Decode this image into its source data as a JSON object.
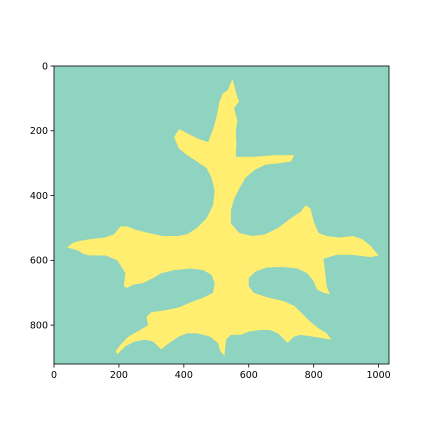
{
  "chart_data": {
    "type": "heatmap",
    "title": "",
    "xlabel": "",
    "ylabel": "",
    "xlim": [
      0,
      1032
    ],
    "ylim": [
      920,
      0
    ],
    "x_ticks": [
      {
        "value": 0,
        "label": "0"
      },
      {
        "value": 200,
        "label": "200"
      },
      {
        "value": 400,
        "label": "400"
      },
      {
        "value": 600,
        "label": "600"
      },
      {
        "value": 800,
        "label": "800"
      },
      {
        "value": 1000,
        "label": "1000"
      }
    ],
    "y_ticks": [
      {
        "value": 0,
        "label": "0"
      },
      {
        "value": 200,
        "label": "200"
      },
      {
        "value": 400,
        "label": "400"
      },
      {
        "value": 600,
        "label": "600"
      },
      {
        "value": 800,
        "label": "800"
      }
    ],
    "colors": {
      "background_value": "#8fd3c1",
      "region_value": "#ffee6f",
      "axis": "#000000"
    },
    "region_outline": [
      [
        550,
        40
      ],
      [
        560,
        80
      ],
      [
        570,
        110
      ],
      [
        555,
        130
      ],
      [
        565,
        170
      ],
      [
        560,
        200
      ],
      [
        562,
        240
      ],
      [
        560,
        280
      ],
      [
        620,
        280
      ],
      [
        680,
        275
      ],
      [
        740,
        275
      ],
      [
        730,
        295
      ],
      [
        695,
        300
      ],
      [
        650,
        305
      ],
      [
        620,
        320
      ],
      [
        590,
        345
      ],
      [
        570,
        380
      ],
      [
        555,
        410
      ],
      [
        545,
        445
      ],
      [
        545,
        485
      ],
      [
        570,
        515
      ],
      [
        610,
        525
      ],
      [
        650,
        520
      ],
      [
        690,
        500
      ],
      [
        730,
        470
      ],
      [
        760,
        450
      ],
      [
        775,
        430
      ],
      [
        790,
        440
      ],
      [
        800,
        480
      ],
      [
        815,
        515
      ],
      [
        840,
        525
      ],
      [
        880,
        530
      ],
      [
        920,
        525
      ],
      [
        950,
        535
      ],
      [
        975,
        555
      ],
      [
        1000,
        585
      ],
      [
        975,
        590
      ],
      [
        920,
        583
      ],
      [
        870,
        583
      ],
      [
        830,
        595
      ],
      [
        835,
        635
      ],
      [
        840,
        680
      ],
      [
        850,
        705
      ],
      [
        830,
        700
      ],
      [
        810,
        690
      ],
      [
        800,
        665
      ],
      [
        780,
        640
      ],
      [
        750,
        625
      ],
      [
        705,
        620
      ],
      [
        655,
        622
      ],
      [
        620,
        635
      ],
      [
        600,
        655
      ],
      [
        600,
        680
      ],
      [
        615,
        700
      ],
      [
        660,
        715
      ],
      [
        705,
        725
      ],
      [
        740,
        740
      ],
      [
        770,
        770
      ],
      [
        790,
        790
      ],
      [
        815,
        810
      ],
      [
        840,
        825
      ],
      [
        855,
        845
      ],
      [
        825,
        840
      ],
      [
        795,
        835
      ],
      [
        760,
        830
      ],
      [
        740,
        835
      ],
      [
        720,
        855
      ],
      [
        705,
        840
      ],
      [
        690,
        825
      ],
      [
        665,
        815
      ],
      [
        635,
        815
      ],
      [
        600,
        820
      ],
      [
        575,
        830
      ],
      [
        545,
        830
      ],
      [
        530,
        845
      ],
      [
        525,
        895
      ],
      [
        512,
        880
      ],
      [
        505,
        855
      ],
      [
        480,
        835
      ],
      [
        440,
        825
      ],
      [
        410,
        825
      ],
      [
        385,
        835
      ],
      [
        355,
        855
      ],
      [
        330,
        875
      ],
      [
        305,
        850
      ],
      [
        280,
        845
      ],
      [
        250,
        850
      ],
      [
        220,
        865
      ],
      [
        195,
        890
      ],
      [
        190,
        880
      ],
      [
        205,
        860
      ],
      [
        230,
        835
      ],
      [
        265,
        815
      ],
      [
        290,
        800
      ],
      [
        285,
        775
      ],
      [
        300,
        760
      ],
      [
        340,
        755
      ],
      [
        385,
        745
      ],
      [
        420,
        730
      ],
      [
        460,
        715
      ],
      [
        490,
        700
      ],
      [
        495,
        670
      ],
      [
        485,
        645
      ],
      [
        460,
        630
      ],
      [
        420,
        625
      ],
      [
        370,
        630
      ],
      [
        330,
        640
      ],
      [
        305,
        655
      ],
      [
        275,
        670
      ],
      [
        245,
        675
      ],
      [
        225,
        685
      ],
      [
        215,
        680
      ],
      [
        220,
        640
      ],
      [
        195,
        600
      ],
      [
        160,
        585
      ],
      [
        110,
        585
      ],
      [
        90,
        580
      ],
      [
        75,
        570
      ],
      [
        40,
        560
      ],
      [
        60,
        545
      ],
      [
        80,
        540
      ],
      [
        110,
        535
      ],
      [
        155,
        530
      ],
      [
        185,
        520
      ],
      [
        205,
        495
      ],
      [
        225,
        495
      ],
      [
        250,
        505
      ],
      [
        290,
        515
      ],
      [
        335,
        525
      ],
      [
        380,
        525
      ],
      [
        410,
        520
      ],
      [
        440,
        500
      ],
      [
        470,
        470
      ],
      [
        490,
        430
      ],
      [
        495,
        385
      ],
      [
        485,
        345
      ],
      [
        470,
        315
      ],
      [
        440,
        295
      ],
      [
        410,
        275
      ],
      [
        385,
        255
      ],
      [
        370,
        220
      ],
      [
        385,
        195
      ],
      [
        415,
        210
      ],
      [
        445,
        225
      ],
      [
        475,
        235
      ],
      [
        490,
        195
      ],
      [
        500,
        160
      ],
      [
        505,
        135
      ],
      [
        510,
        110
      ],
      [
        520,
        85
      ],
      [
        535,
        75
      ]
    ]
  }
}
